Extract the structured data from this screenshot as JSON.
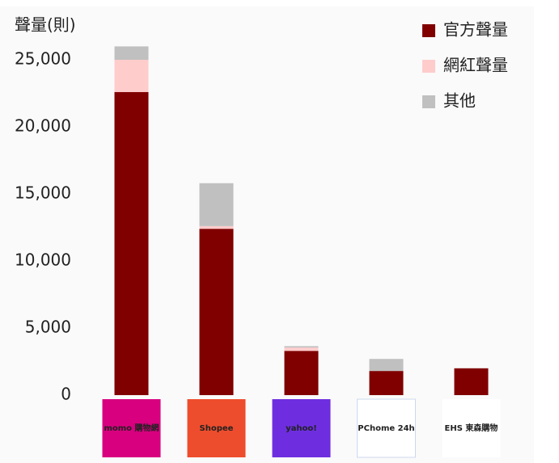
{
  "chart_data": {
    "type": "stacked_bar",
    "y_label": "聲量(則)",
    "categories": [
      "momo 購物網",
      "Shopee",
      "yahoo!",
      "PChome 24h",
      "EHS 東森購物"
    ],
    "series": [
      {
        "name": "官方聲量",
        "color": "#800000",
        "values": [
          22600,
          12400,
          3300,
          1800,
          2000
        ]
      },
      {
        "name": "網紅聲量",
        "color": "#ffcccc",
        "values": [
          2400,
          200,
          250,
          0,
          0
        ]
      },
      {
        "name": "其他",
        "color": "#c0c0c0",
        "values": [
          1000,
          3200,
          100,
          900,
          0
        ]
      }
    ],
    "ylim": [
      0,
      27000
    ],
    "yticks": [
      0,
      {
        "value": 5000,
        "label": "5,000"
      },
      {
        "value": 10000,
        "label": "10,000"
      },
      {
        "value": 15000,
        "label": "15,000"
      },
      {
        "value": 20000,
        "label": "20,000"
      },
      {
        "value": 25000,
        "label": "25,000"
      }
    ],
    "grid": false,
    "legend": "top-right"
  }
}
